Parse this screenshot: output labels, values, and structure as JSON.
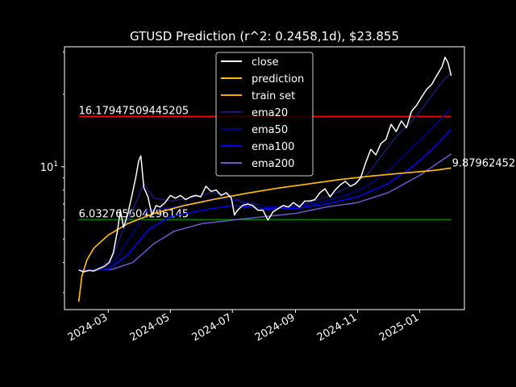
{
  "chart_data": {
    "type": "line",
    "title": "GTUSD Prediction (r^2: 0.2458,1d), $23.855",
    "xlabel": "",
    "ylabel": "",
    "y_scale": "log",
    "xlim": [
      "2024-01-18",
      "2025-02-14"
    ],
    "ylim": [
      2.55,
      31.5
    ],
    "x_ticks": [
      "2024-03",
      "2024-05",
      "2024-07",
      "2024-09",
      "2024-11",
      "2025-01"
    ],
    "y_ticks": [
      {
        "value": 10,
        "label": "10^1"
      }
    ],
    "legend_position": "top-center",
    "hlines": [
      {
        "value": 16.17947509445205,
        "label": "16.17947509445205",
        "color": "#ff0000"
      },
      {
        "value": 6.032765604296145,
        "label": "6.032765604296145",
        "color": "#008000"
      }
    ],
    "end_label": {
      "value": 9.87962452,
      "label": "9.87962452"
    },
    "series": [
      {
        "name": "close",
        "color": "#ffffff",
        "width": 1.5,
        "points": [
          [
            "2024-02-01",
            3.72
          ],
          [
            "2024-02-06",
            3.66
          ],
          [
            "2024-02-11",
            3.71
          ],
          [
            "2024-02-16",
            3.69
          ],
          [
            "2024-02-21",
            3.78
          ],
          [
            "2024-02-26",
            3.85
          ],
          [
            "2024-03-02",
            4.0
          ],
          [
            "2024-03-06",
            4.4
          ],
          [
            "2024-03-10",
            5.4
          ],
          [
            "2024-03-13",
            6.6
          ],
          [
            "2024-03-16",
            5.6
          ],
          [
            "2024-03-20",
            6.3
          ],
          [
            "2024-03-24",
            7.5
          ],
          [
            "2024-03-28",
            9.0
          ],
          [
            "2024-03-31",
            10.6
          ],
          [
            "2024-04-02",
            11.1
          ],
          [
            "2024-04-05",
            8.2
          ],
          [
            "2024-04-09",
            7.5
          ],
          [
            "2024-04-13",
            6.3
          ],
          [
            "2024-04-17",
            6.9
          ],
          [
            "2024-04-21",
            6.8
          ],
          [
            "2024-04-26",
            7.1
          ],
          [
            "2024-05-01",
            7.6
          ],
          [
            "2024-05-06",
            7.4
          ],
          [
            "2024-05-11",
            7.6
          ],
          [
            "2024-05-16",
            7.3
          ],
          [
            "2024-05-21",
            7.5
          ],
          [
            "2024-05-26",
            7.6
          ],
          [
            "2024-05-31",
            7.5
          ],
          [
            "2024-06-05",
            8.3
          ],
          [
            "2024-06-10",
            7.9
          ],
          [
            "2024-06-15",
            8.0
          ],
          [
            "2024-06-20",
            7.6
          ],
          [
            "2024-06-25",
            7.8
          ],
          [
            "2024-06-30",
            7.4
          ],
          [
            "2024-07-03",
            6.3
          ],
          [
            "2024-07-06",
            6.6
          ],
          [
            "2024-07-11",
            6.9
          ],
          [
            "2024-07-16",
            7.0
          ],
          [
            "2024-07-21",
            6.9
          ],
          [
            "2024-07-26",
            6.6
          ],
          [
            "2024-07-31",
            6.6
          ],
          [
            "2024-08-05",
            6.0
          ],
          [
            "2024-08-10",
            6.5
          ],
          [
            "2024-08-15",
            6.7
          ],
          [
            "2024-08-20",
            6.9
          ],
          [
            "2024-08-25",
            6.8
          ],
          [
            "2024-08-30",
            7.1
          ],
          [
            "2024-09-05",
            6.8
          ],
          [
            "2024-09-10",
            7.2
          ],
          [
            "2024-09-15",
            7.2
          ],
          [
            "2024-09-20",
            7.3
          ],
          [
            "2024-09-25",
            7.8
          ],
          [
            "2024-09-30",
            8.1
          ],
          [
            "2024-10-05",
            7.5
          ],
          [
            "2024-10-10",
            8.0
          ],
          [
            "2024-10-15",
            8.4
          ],
          [
            "2024-10-20",
            8.7
          ],
          [
            "2024-10-25",
            8.3
          ],
          [
            "2024-10-30",
            8.5
          ],
          [
            "2024-11-04",
            9.0
          ],
          [
            "2024-11-09",
            10.4
          ],
          [
            "2024-11-14",
            11.8
          ],
          [
            "2024-11-19",
            11.2
          ],
          [
            "2024-11-24",
            12.5
          ],
          [
            "2024-11-29",
            13.0
          ],
          [
            "2024-12-04",
            15.0
          ],
          [
            "2024-12-09",
            14.0
          ],
          [
            "2024-12-14",
            15.5
          ],
          [
            "2024-12-19",
            14.5
          ],
          [
            "2024-12-24",
            17.0
          ],
          [
            "2024-12-29",
            18.0
          ],
          [
            "2025-01-03",
            19.5
          ],
          [
            "2025-01-08",
            21.0
          ],
          [
            "2025-01-13",
            22.0
          ],
          [
            "2025-01-18",
            24.0
          ],
          [
            "2025-01-23",
            26.0
          ],
          [
            "2025-01-26",
            28.5
          ],
          [
            "2025-01-29",
            27.0
          ],
          [
            "2025-02-01",
            23.855
          ]
        ]
      },
      {
        "name": "prediction",
        "color": "#ffbf00",
        "width": 1.5,
        "points": [
          [
            "2024-02-01",
            2.75
          ],
          [
            "2024-02-04",
            3.5
          ],
          [
            "2024-02-09",
            4.1
          ],
          [
            "2024-02-16",
            4.6
          ],
          [
            "2024-03-01",
            5.2
          ],
          [
            "2024-03-20",
            5.8
          ],
          [
            "2024-04-15",
            6.4
          ],
          [
            "2024-05-15",
            6.9
          ],
          [
            "2024-06-15",
            7.35
          ],
          [
            "2024-07-15",
            7.75
          ],
          [
            "2024-08-15",
            8.15
          ],
          [
            "2024-09-15",
            8.5
          ],
          [
            "2024-10-15",
            8.85
          ],
          [
            "2024-11-15",
            9.15
          ],
          [
            "2024-12-15",
            9.4
          ],
          [
            "2025-01-15",
            9.65
          ],
          [
            "2025-02-01",
            9.88
          ]
        ]
      },
      {
        "name": "train set",
        "color": "#ffa500",
        "width": 1.5,
        "points": [
          [
            "2024-02-01",
            2.75
          ],
          [
            "2024-02-04",
            3.5
          ],
          [
            "2024-02-09",
            4.1
          ],
          [
            "2024-02-16",
            4.6
          ],
          [
            "2024-03-01",
            5.2
          ],
          [
            "2024-03-20",
            5.8
          ],
          [
            "2024-04-15",
            6.4
          ],
          [
            "2024-05-15",
            6.9
          ],
          [
            "2024-06-15",
            7.35
          ],
          [
            "2024-07-15",
            7.75
          ],
          [
            "2024-08-15",
            8.15
          ],
          [
            "2024-09-15",
            8.5
          ],
          [
            "2024-10-15",
            8.85
          ],
          [
            "2024-11-15",
            9.15
          ],
          [
            "2024-12-15",
            9.4
          ],
          [
            "2025-01-15",
            9.65
          ],
          [
            "2025-02-01",
            9.88
          ]
        ]
      },
      {
        "name": "ema20",
        "color": "#191970",
        "width": 1.5,
        "points": [
          [
            "2024-02-01",
            3.72
          ],
          [
            "2024-02-20",
            3.72
          ],
          [
            "2024-03-05",
            4.2
          ],
          [
            "2024-03-15",
            5.4
          ],
          [
            "2024-03-25",
            6.6
          ],
          [
            "2024-04-05",
            8.5
          ],
          [
            "2024-04-15",
            7.4
          ],
          [
            "2024-05-01",
            7.2
          ],
          [
            "2024-05-20",
            7.4
          ],
          [
            "2024-06-10",
            7.8
          ],
          [
            "2024-06-30",
            7.6
          ],
          [
            "2024-07-15",
            6.9
          ],
          [
            "2024-08-05",
            6.6
          ],
          [
            "2024-08-25",
            6.8
          ],
          [
            "2024-09-15",
            7.1
          ],
          [
            "2024-10-05",
            7.6
          ],
          [
            "2024-10-25",
            8.3
          ],
          [
            "2024-11-10",
            9.2
          ],
          [
            "2024-11-25",
            11.2
          ],
          [
            "2024-12-10",
            13.5
          ],
          [
            "2024-12-25",
            15.5
          ],
          [
            "2025-01-10",
            19.0
          ],
          [
            "2025-01-25",
            23.0
          ],
          [
            "2025-02-01",
            24.5
          ]
        ]
      },
      {
        "name": "ema50",
        "color": "#00008b",
        "width": 1.5,
        "points": [
          [
            "2024-02-01",
            3.72
          ],
          [
            "2024-02-25",
            3.72
          ],
          [
            "2024-03-10",
            4.2
          ],
          [
            "2024-03-25",
            5.3
          ],
          [
            "2024-04-08",
            6.6
          ],
          [
            "2024-04-25",
            6.7
          ],
          [
            "2024-05-20",
            7.0
          ],
          [
            "2024-06-15",
            7.4
          ],
          [
            "2024-07-10",
            7.2
          ],
          [
            "2024-08-05",
            6.8
          ],
          [
            "2024-08-30",
            6.8
          ],
          [
            "2024-09-25",
            7.1
          ],
          [
            "2024-10-20",
            7.6
          ],
          [
            "2024-11-10",
            8.3
          ],
          [
            "2024-12-01",
            9.6
          ],
          [
            "2024-12-20",
            11.5
          ],
          [
            "2025-01-10",
            14.0
          ],
          [
            "2025-02-01",
            17.5
          ]
        ]
      },
      {
        "name": "ema100",
        "color": "#0000ff",
        "width": 1.5,
        "points": [
          [
            "2024-02-01",
            3.72
          ],
          [
            "2024-03-01",
            3.75
          ],
          [
            "2024-03-20",
            4.3
          ],
          [
            "2024-04-10",
            5.5
          ],
          [
            "2024-05-01",
            6.2
          ],
          [
            "2024-06-01",
            6.6
          ],
          [
            "2024-07-01",
            6.9
          ],
          [
            "2024-08-01",
            6.7
          ],
          [
            "2024-09-01",
            6.7
          ],
          [
            "2024-10-01",
            7.0
          ],
          [
            "2024-11-01",
            7.5
          ],
          [
            "2024-12-01",
            8.5
          ],
          [
            "2024-12-25",
            10.0
          ],
          [
            "2025-01-15",
            12.0
          ],
          [
            "2025-02-01",
            14.3
          ]
        ]
      },
      {
        "name": "ema200",
        "color": "#6a5acd",
        "width": 1.5,
        "points": [
          [
            "2024-02-01",
            3.72
          ],
          [
            "2024-03-05",
            3.75
          ],
          [
            "2024-03-25",
            4.0
          ],
          [
            "2024-04-15",
            4.8
          ],
          [
            "2024-05-05",
            5.4
          ],
          [
            "2024-06-01",
            5.8
          ],
          [
            "2024-07-01",
            6.0
          ],
          [
            "2024-08-01",
            6.2
          ],
          [
            "2024-09-01",
            6.4
          ],
          [
            "2024-10-01",
            6.8
          ],
          [
            "2024-11-01",
            7.1
          ],
          [
            "2024-12-01",
            7.8
          ],
          [
            "2025-01-01",
            9.2
          ],
          [
            "2025-02-01",
            11.3
          ]
        ]
      }
    ]
  }
}
